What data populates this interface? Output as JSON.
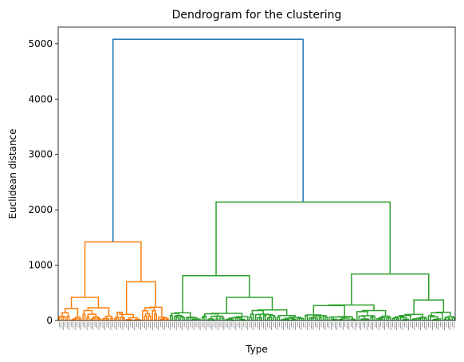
{
  "chart_data": {
    "type": "dendrogram",
    "title": "Dendrogram for the clustering",
    "xlabel": "Type",
    "ylabel": "Euclidean distance",
    "ylim": [
      0,
      5300
    ],
    "yticks": [
      0,
      1000,
      2000,
      3000,
      4000,
      5000
    ],
    "grid": false,
    "leaf_count": 200,
    "colors": {
      "root": "#1f77b4",
      "cluster_1": "#ff7f0e",
      "cluster_2": "#2ca02c"
    },
    "merges": [
      {
        "cluster": "root",
        "height": 5080
      },
      {
        "cluster": "cluster_2",
        "height": 2140
      },
      {
        "cluster": "cluster_1",
        "height": 1420
      },
      {
        "cluster": "cluster_2",
        "height": 840
      },
      {
        "cluster": "cluster_2",
        "height": 810
      },
      {
        "cluster": "cluster_1",
        "height": 700
      },
      {
        "cluster": "cluster_1",
        "height": 420
      },
      {
        "cluster": "cluster_2",
        "height": 420
      },
      {
        "cluster": "cluster_2",
        "height": 370
      },
      {
        "cluster": "cluster_2",
        "height": 270
      },
      {
        "cluster": "cluster_1",
        "height": 220
      }
    ]
  }
}
